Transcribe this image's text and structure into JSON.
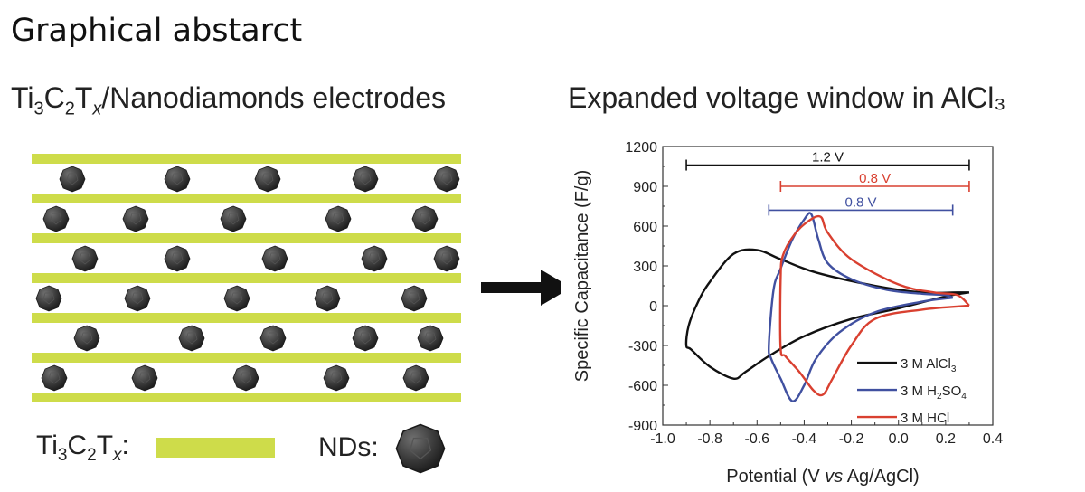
{
  "header": {
    "title": "Graphical abstarct"
  },
  "left_panel": {
    "title": {
      "main": "Ti",
      "sub1": "3",
      "c": "C",
      "sub2": "2",
      "t": "T",
      "sub3": "x",
      "rest": "/Nanodiamonds electrodes"
    },
    "legend_mxene_prefix": "Ti",
    "legend_mxene_sub1": "3",
    "legend_mxene_c": "C",
    "legend_mxene_sub2": "2",
    "legend_mxene_t": "T",
    "legend_mxene_sub3": "x",
    "legend_mxene_colon": ":",
    "legend_nd_label": "NDs:",
    "colors": {
      "layer": "#cedc4a",
      "nanodiamond": "#3c3c3c"
    }
  },
  "right_panel": {
    "title": "Expanded voltage window in AlCl₃"
  },
  "chart_data": {
    "type": "line",
    "xlabel": "Potential (V vs Ag/AgCl)",
    "ylabel": "Specific Capacitance (F/g)",
    "xlim": [
      -1.0,
      0.4
    ],
    "ylim": [
      -900,
      1200
    ],
    "xticks": [
      -1.0,
      -0.8,
      -0.6,
      -0.4,
      -0.2,
      0.0,
      0.2,
      0.4
    ],
    "xtick_labels": [
      "-1.0",
      "-0.8",
      "-0.6",
      "-0.4",
      "-0.2",
      "0.0",
      "0.2",
      "0.4"
    ],
    "yticks": [
      -900,
      -600,
      -300,
      0,
      300,
      600,
      900,
      1200
    ],
    "ytick_labels": [
      "-900",
      "-600",
      "-300",
      "0",
      "300",
      "600",
      "900",
      "1200"
    ],
    "annotations": [
      {
        "text": "1.2 V",
        "x1": -0.9,
        "x2": 0.3,
        "y": 1060,
        "color": "#111111"
      },
      {
        "text": "0.8 V",
        "x1": -0.5,
        "x2": 0.3,
        "y": 900,
        "color": "#d94030"
      },
      {
        "text": "0.8 V",
        "x1": -0.55,
        "x2": 0.23,
        "y": 720,
        "color": "#4050a0"
      }
    ],
    "series": [
      {
        "name": "3 M AlCl",
        "name_sub": "3",
        "color": "#111111",
        "x": [
          0.3,
          0.2,
          0.0,
          -0.2,
          -0.4,
          -0.55,
          -0.65,
          -0.7,
          -0.8,
          -0.88,
          -0.9,
          -0.89,
          -0.85,
          -0.8,
          -0.7,
          -0.6,
          -0.5,
          -0.35,
          -0.1,
          0.1,
          0.25,
          0.3
        ],
        "y": [
          100,
          70,
          -20,
          -100,
          -230,
          -380,
          -500,
          -550,
          -460,
          -330,
          -300,
          -150,
          30,
          180,
          390,
          420,
          350,
          250,
          150,
          100,
          100,
          100
        ]
      },
      {
        "name": "3 M H",
        "name_sub": "2",
        "name_rest": "SO",
        "name_sub2": "4",
        "color": "#4050a0",
        "x": [
          0.23,
          0.1,
          -0.1,
          -0.25,
          -0.35,
          -0.4,
          -0.45,
          -0.5,
          -0.54,
          -0.55,
          -0.53,
          -0.5,
          -0.45,
          -0.4,
          -0.37,
          -0.34,
          -0.3,
          -0.2,
          -0.05,
          0.1,
          0.2,
          0.23
        ],
        "y": [
          60,
          30,
          -50,
          -200,
          -400,
          -600,
          -720,
          -550,
          -400,
          -300,
          120,
          280,
          500,
          650,
          690,
          500,
          320,
          200,
          120,
          90,
          80,
          60
        ]
      },
      {
        "name": "3 M HCl",
        "color": "#d94030",
        "x": [
          0.3,
          0.1,
          -0.1,
          -0.2,
          -0.28,
          -0.32,
          -0.36,
          -0.42,
          -0.48,
          -0.5,
          -0.5,
          -0.49,
          -0.44,
          -0.38,
          -0.33,
          -0.3,
          -0.2,
          0.0,
          0.15,
          0.25,
          0.3
        ],
        "y": [
          0,
          -30,
          -100,
          -300,
          -550,
          -670,
          -640,
          -500,
          -380,
          -320,
          200,
          380,
          540,
          640,
          670,
          550,
          350,
          160,
          100,
          80,
          0
        ]
      }
    ],
    "legend_position": "bottom-right"
  }
}
